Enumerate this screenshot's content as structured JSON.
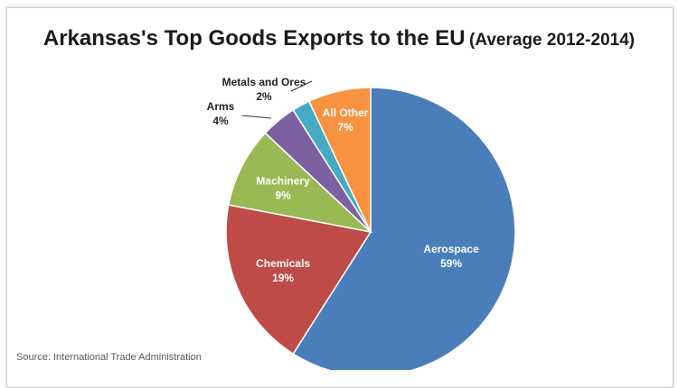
{
  "chart_data": {
    "type": "pie",
    "title": "Arkansas's Top Goods Exports to the EU",
    "subtitle": "(Average 2012-2014)",
    "source": "Source: International Trade Administration",
    "slices": [
      {
        "name": "Aerospace",
        "value": 59,
        "label": "59%",
        "color": "#4a7ebb"
      },
      {
        "name": "Chemicals",
        "value": 19,
        "label": "19%",
        "color": "#be4b48"
      },
      {
        "name": "Machinery",
        "value": 9,
        "label": "9%",
        "color": "#98b954"
      },
      {
        "name": "Arms",
        "value": 4,
        "label": "4%",
        "color": "#7d60a0"
      },
      {
        "name": "Metals and Ores",
        "value": 2,
        "label": "2%",
        "color": "#46aac5"
      },
      {
        "name": "All Other",
        "value": 7,
        "label": "7%",
        "color": "#f69240"
      }
    ]
  }
}
